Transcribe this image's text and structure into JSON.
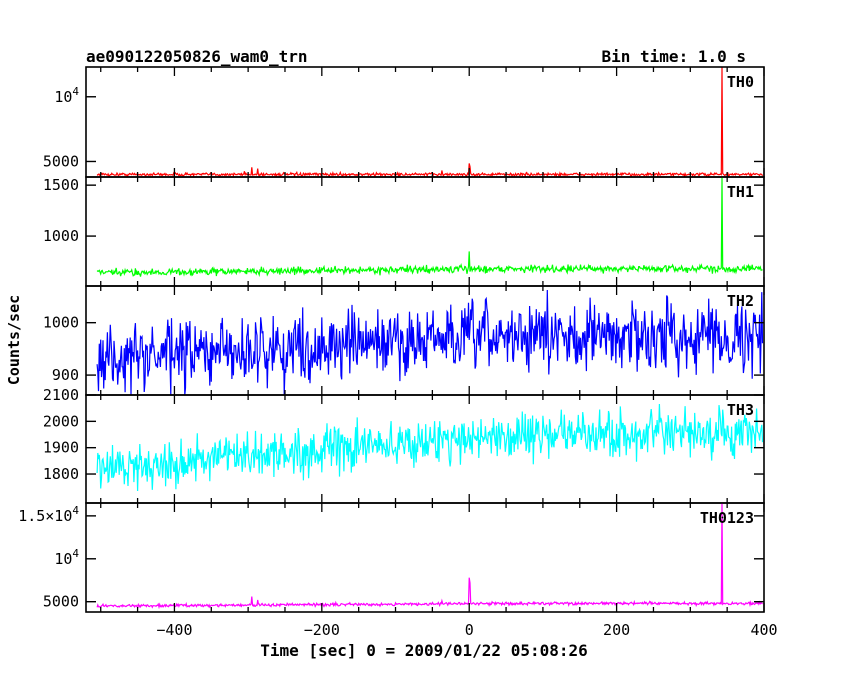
{
  "header": {
    "title": "ae090122050826_wam0_trn",
    "bin_time": "Bin time: 1.0 s"
  },
  "chart_data": {
    "type": "line",
    "x_label": "Time [sec] 0 = 2009/01/22 05:08:26",
    "y_label": "Counts/sec",
    "x_range": [
      -520,
      400
    ],
    "x_ticks": [
      -400,
      -200,
      0,
      200,
      400
    ],
    "x_tick_labels": [
      "−400",
      "−200",
      "0",
      "200",
      "400"
    ],
    "data_x_range": [
      -505,
      398
    ],
    "grid": false,
    "panels": [
      {
        "name": "TH0",
        "color": "#ff0000",
        "y_range": [
          3800,
          12300
        ],
        "y_ticks": [
          5000,
          10000
        ],
        "y_tick_labels": [
          {
            "base": "5000",
            "exp": ""
          },
          {
            "base": "10",
            "exp": "4"
          }
        ],
        "baseline": 4000,
        "noise": 80,
        "spikes": [
          {
            "x": -305,
            "y": 4250
          },
          {
            "x": -295,
            "y": 4550
          },
          {
            "x": -287,
            "y": 4450
          },
          {
            "x": -37,
            "y": 4300
          },
          {
            "x": 0,
            "y": 4850
          },
          {
            "x": 1,
            "y": 4600
          },
          {
            "x": 343,
            "y": 12300
          }
        ]
      },
      {
        "name": "TH1",
        "color": "#00ff00",
        "y_range": [
          510,
          1580
        ],
        "y_ticks": [
          1000,
          1500
        ],
        "y_tick_labels": [
          {
            "base": "1000",
            "exp": ""
          },
          {
            "base": "1500",
            "exp": ""
          }
        ],
        "baseline": 640,
        "noise": 25,
        "trend": 40,
        "spikes": [
          {
            "x": 0,
            "y": 850
          },
          {
            "x": 343,
            "y": 1580
          }
        ]
      },
      {
        "name": "TH2",
        "color": "#0000ff",
        "y_range": [
          862,
          1070
        ],
        "y_ticks": [
          900,
          1000
        ],
        "y_tick_labels": [
          {
            "base": "900",
            "exp": ""
          },
          {
            "base": "1000",
            "exp": ""
          }
        ],
        "baseline": 930,
        "noise": 45,
        "trend": 45,
        "spikes": []
      },
      {
        "name": "TH3",
        "color": "#00ffff",
        "y_range": [
          1690,
          2100
        ],
        "y_ticks": [
          1800,
          1900,
          2000,
          2100
        ],
        "y_tick_labels": [
          {
            "base": "1800",
            "exp": ""
          },
          {
            "base": "1900",
            "exp": ""
          },
          {
            "base": "2000",
            "exp": ""
          },
          {
            "base": "2100",
            "exp": ""
          }
        ],
        "baseline": 1820,
        "noise": 60,
        "trend": 130,
        "spikes": []
      },
      {
        "name": "TH0123",
        "color": "#ff00ff",
        "y_range": [
          3800,
          16500
        ],
        "y_ticks": [
          5000,
          10000,
          15000
        ],
        "y_tick_labels": [
          {
            "base": "5000",
            "exp": ""
          },
          {
            "base": "10",
            "exp": "4"
          },
          {
            "base": "1.5×10",
            "exp": "4"
          }
        ],
        "baseline": 4500,
        "noise": 120,
        "trend": 300,
        "spikes": [
          {
            "x": -295,
            "y": 5600
          },
          {
            "x": -287,
            "y": 5200
          },
          {
            "x": -37,
            "y": 5100
          },
          {
            "x": 0,
            "y": 7800
          },
          {
            "x": 1,
            "y": 7200
          },
          {
            "x": 343,
            "y": 16500
          }
        ]
      }
    ]
  }
}
